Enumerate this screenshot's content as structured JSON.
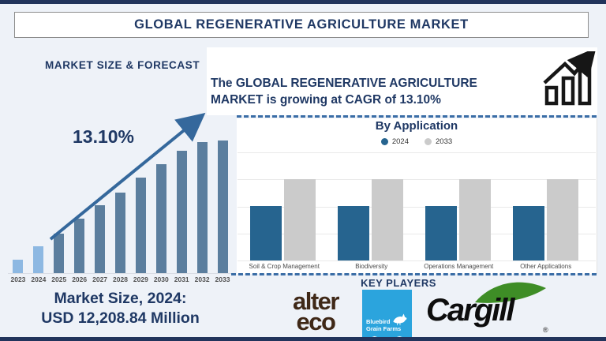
{
  "title_bar": {
    "title": "GLOBAL REGENERATIVE AGRICULTURE MARKET"
  },
  "forecast": {
    "heading": "MARKET SIZE & FORECAST",
    "cagr_label": "13.10%",
    "market_size_label": "Market Size, 2024:",
    "market_size_value": "USD 12,208.84 Million"
  },
  "headline": {
    "line1": "The GLOBAL REGENERATIVE AGRICULTURE",
    "line2": "MARKET is growing at CAGR of 13.10%",
    "icon": "growth-chart-icon"
  },
  "by_application": {
    "title": "By Application",
    "legend": [
      {
        "label": "2024",
        "color": "#26648f"
      },
      {
        "label": "2033",
        "color": "#cbcbcb"
      }
    ]
  },
  "key_players": {
    "heading": "KEY PLAYERS",
    "logos": [
      {
        "name": "alter eco",
        "line1": "alter",
        "line2": "eco",
        "color": "#3f2817"
      },
      {
        "name": "Bluebird Grain Farms",
        "line1": "Bluebird",
        "line2": "Grain Farms",
        "bg": "#2ba4dd"
      },
      {
        "name": "Cargill",
        "text": "Cargill",
        "reg": "®",
        "leaf_color": "#3e8d26"
      }
    ]
  },
  "chart_data": [
    {
      "type": "bar",
      "title": "MARKET SIZE & FORECAST",
      "categories": [
        "2023",
        "2024",
        "2025",
        "2026",
        "2027",
        "2028",
        "2029",
        "2030",
        "2031",
        "2032",
        "2033"
      ],
      "values": [
        10,
        20,
        30,
        41,
        51,
        61,
        72,
        82,
        92,
        99,
        100
      ],
      "unit": "relative bar height, % of tallest bar (only labeled value: 2024 = USD 12,208.84 Million; CAGR 13.10%)",
      "bar_colors": [
        "#8db8e2",
        "#8db8e2",
        "#5b7e9e",
        "#5b7e9e",
        "#5b7e9e",
        "#5b7e9e",
        "#5b7e9e",
        "#5b7e9e",
        "#5b7e9e",
        "#5b7e9e",
        "#5b7e9e"
      ],
      "annotations": [
        "13.10% growth arrow"
      ],
      "xlabel": "",
      "ylabel": "",
      "grid": false,
      "legend_position": "none"
    },
    {
      "type": "bar",
      "title": "By Application",
      "categories": [
        "Soil & Crop Management",
        "Biodiversity",
        "Operations Management",
        "Other Applications"
      ],
      "series": [
        {
          "name": "2024",
          "color": "#26648f",
          "values": [
            67,
            67,
            67,
            67
          ]
        },
        {
          "name": "2033",
          "color": "#cbcbcb",
          "values": [
            100,
            100,
            100,
            100
          ]
        }
      ],
      "unit": "relative bar height, % of 2033 bar",
      "xlabel": "",
      "ylabel": "",
      "grid": true,
      "legend_position": "top"
    }
  ]
}
